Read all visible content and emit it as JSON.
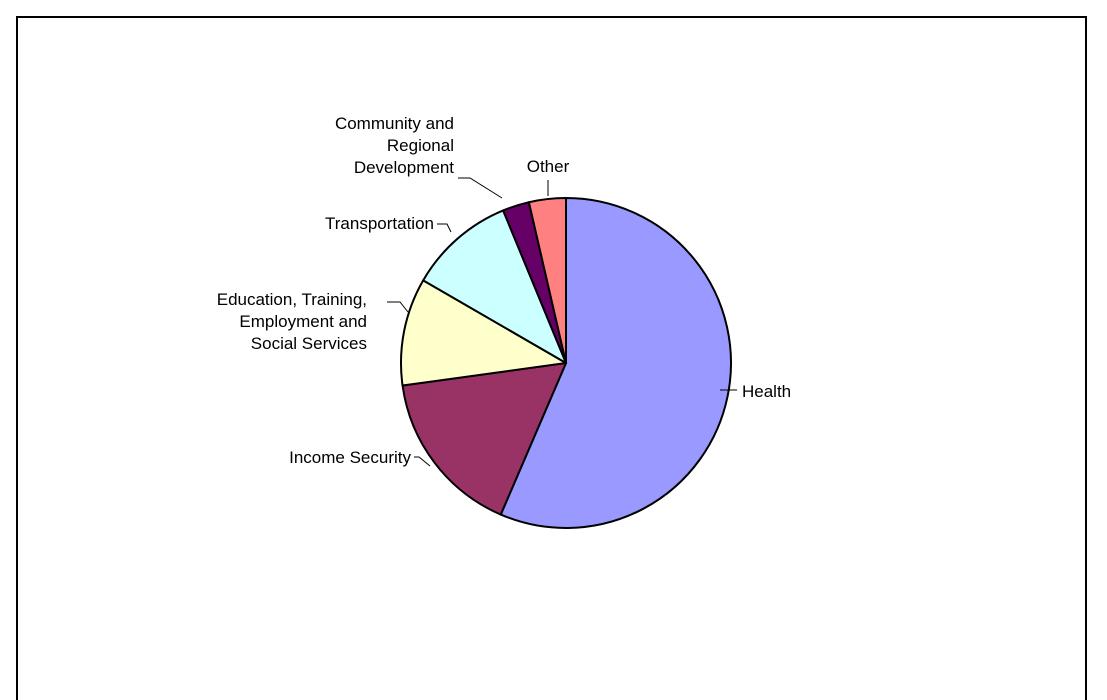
{
  "chart_data": {
    "type": "pie",
    "title": "",
    "slices": [
      {
        "label": "Health",
        "value": 56.3,
        "color": "#9999FF"
      },
      {
        "label": "Income Security",
        "value": 16.3,
        "color": "#993366"
      },
      {
        "label": "Education, Training, Employment and Social Services",
        "value": 10.5,
        "color": "#FFFFCC"
      },
      {
        "label": "Transportation",
        "value": 10.4,
        "color": "#CCFFFF"
      },
      {
        "label": "Community and Regional Development",
        "value": 2.6,
        "color": "#660066"
      },
      {
        "label": "Other",
        "value": 3.6,
        "color": "#FF8080"
      }
    ],
    "label_lines": [
      [
        "Health"
      ],
      [
        "Income Security"
      ],
      [
        "Education, Training,",
        "Employment and",
        "Social Services"
      ],
      [
        "Transportation"
      ],
      [
        "Community and",
        "Regional",
        "Development"
      ],
      [
        "Other"
      ]
    ],
    "start_angle": "12 o'clock",
    "direction": "clockwise"
  }
}
